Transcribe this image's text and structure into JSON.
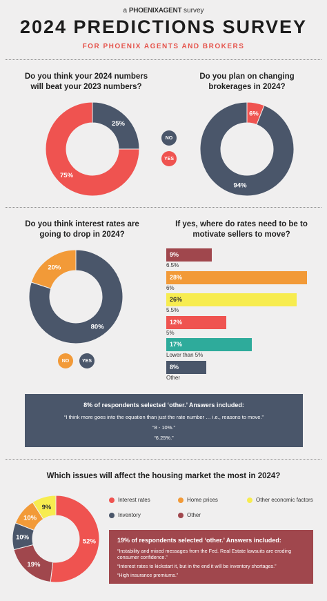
{
  "header": {
    "brand_prefix": "a",
    "brand_name": "PHOENIXAGENT",
    "brand_suffix": "survey",
    "title": "2024 PREDICTIONS SURVEY",
    "subtitle": "FOR PHOENIX AGENTS AND BROKERS"
  },
  "colors": {
    "red": "#ef5350",
    "navy": "#4a566a",
    "orange": "#f29a38",
    "yellow": "#f7ec4f",
    "teal": "#2eab9b",
    "maroon": "#a0474d"
  },
  "center_legend": {
    "no": "NO",
    "yes": "YES"
  },
  "chart_data": [
    {
      "type": "pie",
      "title": "Do you think your 2024 numbers will beat your 2023 numbers?",
      "slices": [
        {
          "label": "NO",
          "value": 25,
          "display": "25%",
          "color": "#4a566a"
        },
        {
          "label": "YES",
          "value": 75,
          "display": "75%",
          "color": "#ef5350"
        }
      ]
    },
    {
      "type": "pie",
      "title": "Do you plan on changing brokerages in 2024?",
      "slices": [
        {
          "label": "YES",
          "value": 6,
          "display": "6%",
          "color": "#ef5350"
        },
        {
          "label": "NO",
          "value": 94,
          "display": "94%",
          "color": "#4a566a"
        }
      ]
    },
    {
      "type": "pie",
      "title": "Do you think interest rates are going to drop in 2024?",
      "slices": [
        {
          "label": "YES",
          "value": 80,
          "display": "80%",
          "color": "#4a566a"
        },
        {
          "label": "NO",
          "value": 20,
          "display": "20%",
          "color": "#f29a38"
        }
      ],
      "legend": {
        "no": "NO",
        "yes": "YES"
      }
    },
    {
      "type": "bar",
      "title": "If yes, where do rates need to be to motivate sellers to move?",
      "categories": [
        "6.5%",
        "6%",
        "5.5%",
        "5%",
        "Lower than 5%",
        "Other"
      ],
      "values": [
        9,
        28,
        26,
        12,
        17,
        8
      ],
      "display": [
        "9%",
        "28%",
        "26%",
        "12%",
        "17%",
        "8%"
      ],
      "colors": [
        "#a0474d",
        "#f29a38",
        "#f7ec4f",
        "#ef5350",
        "#2eab9b",
        "#4a566a"
      ]
    },
    {
      "type": "pie",
      "title": "Which issues will affect the housing market the most in 2024?",
      "slices": [
        {
          "label": "Interest rates",
          "value": 52,
          "display": "52%",
          "color": "#ef5350"
        },
        {
          "label": "Other",
          "value": 19,
          "display": "19%",
          "color": "#a0474d"
        },
        {
          "label": "Inventory",
          "value": 10,
          "display": "10%",
          "color": "#4a566a"
        },
        {
          "label": "Home prices",
          "value": 10,
          "display": "10%",
          "color": "#f29a38"
        },
        {
          "label": "Other economic factors",
          "value": 9,
          "display": "9%",
          "color": "#f7ec4f"
        }
      ]
    }
  ],
  "other_rates_box": {
    "heading": "8% of respondents selected ‘other.’ Answers included:",
    "quotes": [
      "“I think more goes into the equation than just the rate number … i.e., reasons to move.”",
      "“8 - 10%.”",
      "“6.25%.”"
    ]
  },
  "issues_legend": [
    {
      "label": "Interest rates",
      "color": "#ef5350"
    },
    {
      "label": "Home prices",
      "color": "#f29a38"
    },
    {
      "label": "Other economic factors",
      "color": "#f7ec4f"
    },
    {
      "label": "Inventory",
      "color": "#4a566a"
    },
    {
      "label": "Other",
      "color": "#a0474d"
    }
  ],
  "other_issues_box": {
    "heading": "19% of respondents selected ‘other.’ Answers included:",
    "quotes": [
      "“Instability and mixed messages from the Fed. Real Estate lawsuits are eroding consumer confidence.”",
      "“Interest rates to kickstart it, but in the end it will be inventory shortages.”",
      "“High insurance premiums.”"
    ]
  }
}
